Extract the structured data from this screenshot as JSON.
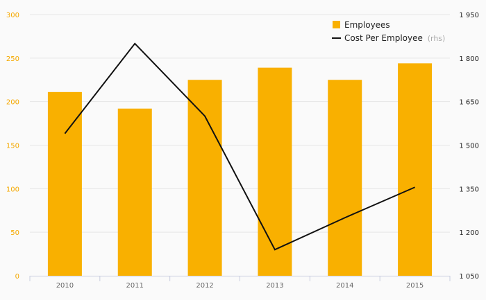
{
  "chart_data": {
    "type": "bar",
    "categories": [
      "2010",
      "2011",
      "2012",
      "2013",
      "2014",
      "2015"
    ],
    "series": [
      {
        "name": "Employees",
        "type": "bar",
        "axis": "left",
        "color": "#f9b000",
        "values": [
          211,
          192,
          225,
          239,
          225,
          244
        ]
      },
      {
        "name": "Cost Per Employee",
        "name_suffix": "(rhs)",
        "type": "line",
        "axis": "right",
        "color": "#111111",
        "values": [
          1540,
          1850,
          1600,
          1140,
          1250,
          1355
        ]
      }
    ],
    "y_left": {
      "min": 0,
      "max": 300,
      "ticks": [
        "0",
        "50",
        "100",
        "150",
        "200",
        "250",
        "300"
      ],
      "color": "#f5a800"
    },
    "y_right": {
      "min": 1050,
      "max": 1950,
      "ticks": [
        "1 050",
        "1 200",
        "1 350",
        "1 500",
        "1 650",
        "1 800",
        "1 950"
      ]
    },
    "legend_position": "top-right",
    "grid": true
  }
}
